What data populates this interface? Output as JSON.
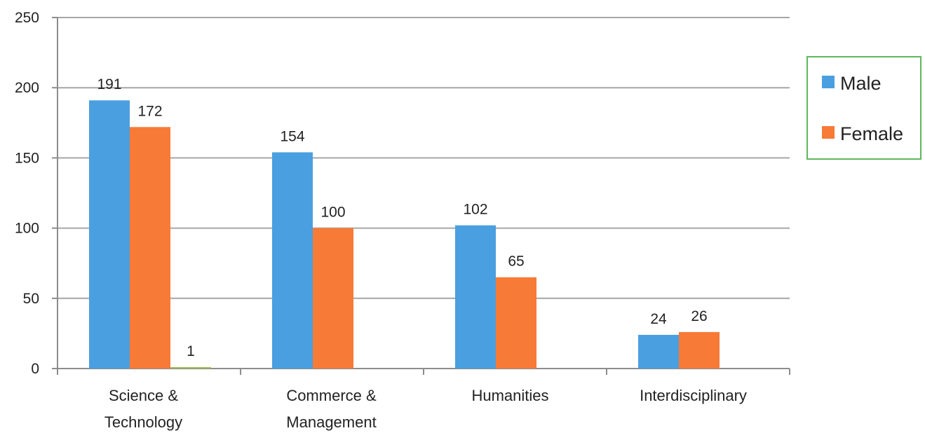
{
  "chart_data": {
    "type": "bar",
    "categories": [
      [
        "Science &",
        "Technology"
      ],
      [
        "Commerce &",
        "Management"
      ],
      [
        "Humanities"
      ],
      [
        "Interdisciplinary"
      ]
    ],
    "series": [
      {
        "name": "Male",
        "color": "#4a9fe0",
        "values": [
          191,
          154,
          102,
          24
        ]
      },
      {
        "name": "Female",
        "color": "#f77a37",
        "values": [
          172,
          100,
          65,
          26
        ]
      },
      {
        "name": "",
        "color": "#9bbb59",
        "values": [
          1,
          null,
          null,
          null
        ]
      }
    ],
    "ylim": [
      0,
      250
    ],
    "yticks": [
      0,
      50,
      100,
      150,
      200,
      250
    ],
    "grid": true,
    "legend": {
      "placement": "right",
      "entries": [
        "Male",
        "Female"
      ],
      "border_color": "#5cb85c"
    }
  }
}
